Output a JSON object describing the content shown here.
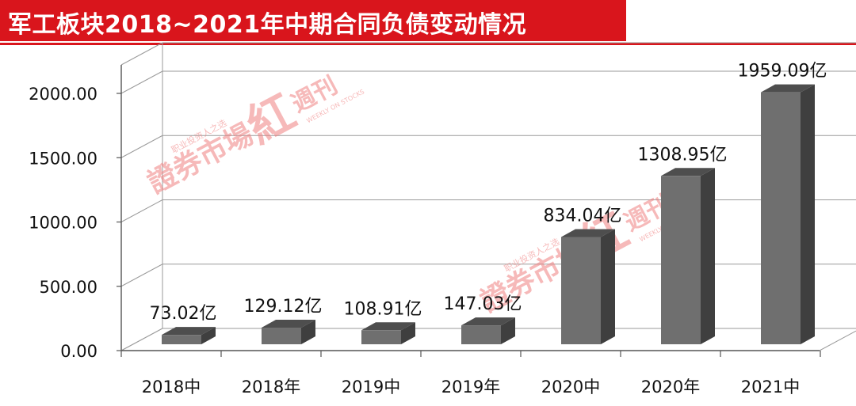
{
  "header": {
    "title": "军工板块2018~2021年中期合同负债变动情况"
  },
  "watermark": {
    "main": "證券市場",
    "mark": "紅",
    "cn": "週刊",
    "tagline": "职业投资人之选",
    "en": "WEEKLY ON STOCKS"
  },
  "colors": {
    "accent": "#d9151c",
    "bar_front": "#6f6f6f",
    "bar_top": "#4e4e4e",
    "bar_side": "#3f3f3f",
    "watermark": "#f08080"
  },
  "chart_data": {
    "type": "bar",
    "style": "3d-column",
    "categories": [
      "2018中",
      "2018年",
      "2019中",
      "2019年",
      "2020中",
      "2020年",
      "2021中"
    ],
    "values": [
      73.02,
      129.12,
      108.91,
      147.03,
      834.04,
      1308.95,
      1959.09
    ],
    "data_labels": [
      "73.02亿",
      "129.12亿",
      "108.91亿",
      "147.03亿",
      "834.04亿",
      "1308.95亿",
      "1959.09亿"
    ],
    "y_ticks": [
      "0.00",
      "500.00",
      "1000.00",
      "1500.00",
      "2000.00"
    ],
    "ylim": [
      0,
      2000
    ],
    "grid": true,
    "legend": "none",
    "title": "军工板块2018~2021年中期合同负债变动情况",
    "xlabel": "",
    "ylabel": ""
  }
}
